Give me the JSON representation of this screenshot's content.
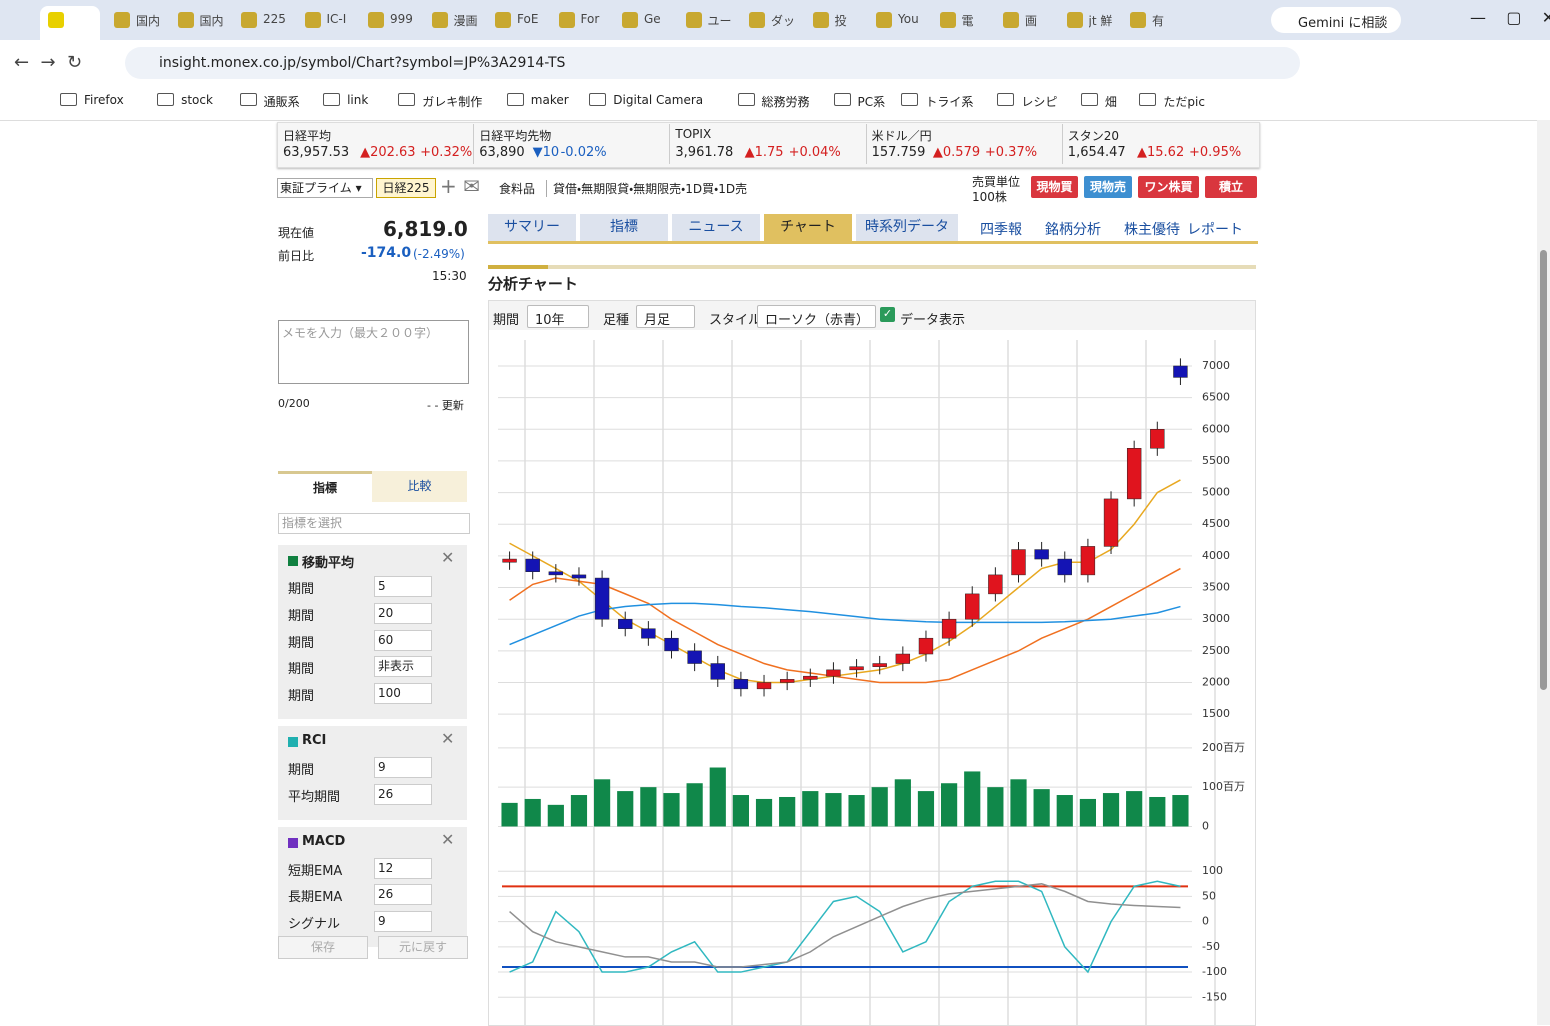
{
  "browser": {
    "tabs": [
      "国内",
      "国内",
      "225",
      "IC-I",
      "999",
      "漫画",
      "FoE",
      "For",
      "Ge",
      "ユー",
      "ダッ",
      "投",
      "You",
      "電",
      "画",
      "jt 鮮",
      "有"
    ],
    "gemini": "Gemini に相談",
    "url": "insight.monex.co.jp/symbol/Chart?symbol=JP%3A2914-TS",
    "bookmarks": [
      "Firefox",
      "stock",
      "通販系",
      "link",
      "ガレキ制作",
      "maker",
      "Digital Camera",
      "総務労務",
      "PC系",
      "トライ系",
      "レシピ",
      "畑",
      "ただpic"
    ]
  },
  "ticker": [
    {
      "name": "日経平均",
      "price": "63,957.53",
      "change": "▲202.63",
      "pct": "+0.32%"
    },
    {
      "name": "日経平均先物",
      "price": "63,890",
      "change": "▼10",
      "pct": "-0.02%"
    },
    {
      "name": "TOPIX",
      "price": "3,961.78",
      "change": "▲1.75",
      "pct": "+0.04%"
    },
    {
      "name": "米ドル／円",
      "price": "157.759",
      "change": "▲0.579",
      "pct": "+0.37%"
    },
    {
      "name": "スタン20",
      "price": "1,654.47",
      "change": "▲15.62",
      "pct": "+0.95%"
    }
  ],
  "header": {
    "market": "東証プライム",
    "index": "日経225",
    "industry": "食料品",
    "info": "貸借・無期限貸・無期限売・1D買・1D売",
    "unit_label": "売買単位",
    "unit": "100株",
    "buttons": [
      "現物買",
      "現物売",
      "ワン株買",
      "積立"
    ]
  },
  "quote": {
    "price_label": "現在値",
    "price": "6,819.0",
    "change_label": "前日比",
    "change": "-174.0",
    "pct": "(-2.49%)",
    "time": "15:30"
  },
  "memo": {
    "placeholder": "メモを入力（最大２００字）",
    "count": "0/200",
    "update": "- - 更新"
  },
  "indicator_panel": {
    "tabs": [
      "指標",
      "比較"
    ],
    "select": "指標を選択",
    "groups": [
      {
        "title": "移動平均",
        "rows": [
          [
            "期間",
            "5"
          ],
          [
            "期間",
            "20"
          ],
          [
            "期間",
            "60"
          ],
          [
            "期間",
            "非表示"
          ],
          [
            "期間",
            "100"
          ]
        ]
      },
      {
        "title": "RCI",
        "rows": [
          [
            "期間",
            "9"
          ],
          [
            "平均期間",
            "26"
          ]
        ]
      },
      {
        "title": "MACD",
        "rows": [
          [
            "短期EMA",
            "12"
          ],
          [
            "長期EMA",
            "26"
          ],
          [
            "シグナル",
            "9"
          ]
        ]
      }
    ],
    "buttons": [
      "保存",
      "元に戻す"
    ]
  },
  "nav": {
    "tabs": [
      "サマリー",
      "指標",
      "ニュース",
      "チャート",
      "時系列データ"
    ],
    "links": [
      "四季報",
      "銘柄分析",
      "株主優待",
      "レポート"
    ]
  },
  "section": {
    "title": "分析チャート",
    "controls": [
      "期間",
      "10年",
      "足種",
      "月足",
      "スタイル",
      "ローソク（赤青）",
      "データ表示"
    ]
  },
  "chart_data": {
    "type": "candlestick",
    "up_color": "#e0141e",
    "down_color": "#1414b4",
    "opens": [
      3900,
      3950,
      3750,
      3700,
      3650,
      3000,
      2850,
      2700,
      2500,
      2300,
      2050,
      1900,
      2000,
      2050,
      2100,
      2200,
      2250,
      2300,
      2450,
      2700,
      3000,
      3400,
      3700,
      4100,
      3950,
      3700,
      4150,
      4900,
      5700,
      7000
    ],
    "highs": [
      4070,
      4070,
      3870,
      3820,
      3770,
      3120,
      2970,
      2820,
      2620,
      2420,
      2170,
      2120,
      2170,
      2220,
      2320,
      2370,
      2420,
      2570,
      2820,
      3120,
      3520,
      3820,
      4220,
      4220,
      4070,
      4270,
      5020,
      5820,
      6120,
      7120
    ],
    "lows": [
      3780,
      3630,
      3580,
      3530,
      2880,
      2730,
      2580,
      2380,
      2180,
      1930,
      1780,
      1780,
      1880,
      1930,
      1980,
      2080,
      2130,
      2180,
      2330,
      2580,
      2880,
      3280,
      3580,
      3830,
      3580,
      3580,
      4030,
      4780,
      5580,
      6699
    ],
    "closes": [
      3950,
      3750,
      3700,
      3650,
      3000,
      2850,
      2700,
      2500,
      2300,
      2050,
      1900,
      2000,
      2050,
      2100,
      2200,
      2250,
      2300,
      2450,
      2700,
      3000,
      3400,
      3700,
      4100,
      3950,
      3700,
      4150,
      4900,
      5700,
      6000,
      6819
    ],
    "series": [
      {
        "name": "20",
        "color": "#e8a820",
        "values": [
          4200,
          4000,
          3800,
          3600,
          3300,
          3000,
          2800,
          2600,
          2400,
          2200,
          2050,
          2000,
          2000,
          2050,
          2100,
          2150,
          2200,
          2300,
          2450,
          2650,
          2900,
          3200,
          3500,
          3800,
          3900,
          3900,
          4100,
          4500,
          5000,
          5200
        ]
      },
      {
        "name": "60",
        "color": "#f07020",
        "values": [
          3300,
          3550,
          3650,
          3600,
          3550,
          3400,
          3250,
          3000,
          2800,
          2600,
          2450,
          2300,
          2200,
          2150,
          2100,
          2050,
          2000,
          2000,
          2000,
          2050,
          2200,
          2350,
          2500,
          2700,
          2850,
          3000,
          3200,
          3400,
          3600,
          3800
        ]
      },
      {
        "name": "100",
        "color": "#2090e0",
        "values": [
          2600,
          2750,
          2900,
          3050,
          3150,
          3200,
          3230,
          3250,
          3250,
          3230,
          3200,
          3180,
          3150,
          3120,
          3080,
          3040,
          3000,
          2980,
          2960,
          2950,
          2950,
          2950,
          2950,
          2950,
          2960,
          2980,
          3000,
          3050,
          3100,
          3200
        ]
      }
    ],
    "ylim": [
      1250,
      7410
    ],
    "yticks": [
      1500,
      2000,
      2500,
      3000,
      3500,
      4000,
      4500,
      5000,
      5500,
      6000,
      6500,
      7000
    ],
    "volume": {
      "color": "#10884a",
      "values": [
        60,
        70,
        55,
        80,
        120,
        90,
        100,
        85,
        110,
        150,
        80,
        70,
        75,
        90,
        85,
        80,
        100,
        120,
        90,
        110,
        140,
        100,
        120,
        95,
        80,
        70,
        85,
        90,
        75,
        80
      ],
      "ylim": [
        -9,
        220
      ],
      "yticks": [
        0,
        {
          "value": 100,
          "label": "100百万"
        },
        {
          "value": 200,
          "label": "200百万"
        }
      ]
    },
    "rci": {
      "series": [
        {
          "name": "9",
          "color": "#30b8c0",
          "values": [
            -100,
            -80,
            20,
            -20,
            -100,
            -100,
            -90,
            -60,
            -40,
            -100,
            -100,
            -90,
            -80,
            -20,
            40,
            50,
            20,
            -60,
            -40,
            40,
            70,
            80,
            80,
            60,
            -50,
            -100,
            0,
            70,
            80,
            70
          ]
        },
        {
          "name": "26",
          "color": "#909090",
          "values": [
            20,
            -20,
            -40,
            -50,
            -60,
            -70,
            -70,
            -80,
            -80,
            -90,
            -90,
            -85,
            -80,
            -60,
            -30,
            -10,
            10,
            30,
            45,
            55,
            60,
            65,
            70,
            75,
            60,
            40,
            35,
            32,
            30,
            28
          ]
        }
      ],
      "upper": 70,
      "lower": -90,
      "ylim": [
        -205,
        152
      ],
      "yticks": [
        100,
        50,
        0,
        -50,
        -100,
        -150
      ]
    }
  }
}
